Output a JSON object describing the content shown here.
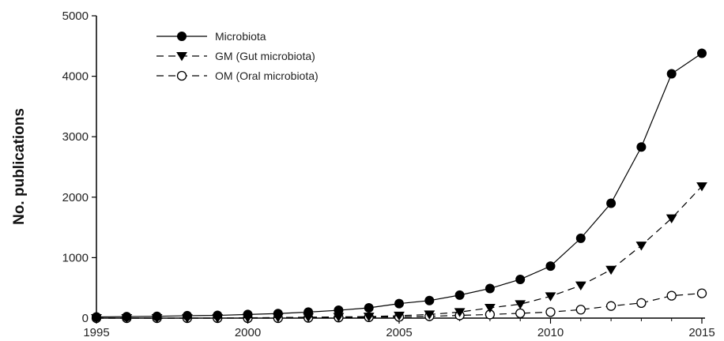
{
  "chart_data": {
    "type": "line",
    "title": "",
    "xlabel": "",
    "ylabel": "No. publications",
    "xlim": [
      1995,
      2015
    ],
    "ylim": [
      0,
      5000
    ],
    "xticks": [
      "1995",
      "2000",
      "2005",
      "2010",
      "2015"
    ],
    "yticks": [
      "0",
      "1000",
      "2000",
      "3000",
      "4000",
      "5000"
    ],
    "grid": false,
    "legend_position": "top-left",
    "x": [
      1995,
      1996,
      1997,
      1998,
      1999,
      2000,
      2001,
      2002,
      2003,
      2004,
      2005,
      2006,
      2007,
      2008,
      2009,
      2010,
      2011,
      2012,
      2013,
      2014,
      2015
    ],
    "series": [
      {
        "name": "Microbiota",
        "marker": "filled-circle",
        "line": "solid",
        "color": "#000000",
        "values": [
          20,
          25,
          30,
          40,
          45,
          60,
          75,
          100,
          130,
          170,
          240,
          290,
          380,
          490,
          640,
          860,
          1320,
          1900,
          2830,
          4040,
          4380
        ]
      },
      {
        "name": "GM (Gut microbiota)",
        "marker": "filled-triangle-down",
        "line": "dashed",
        "color": "#000000",
        "values": [
          0,
          0,
          0,
          0,
          0,
          5,
          10,
          15,
          20,
          25,
          40,
          60,
          100,
          170,
          230,
          360,
          540,
          800,
          1200,
          1650,
          2180
        ]
      },
      {
        "name": "OM (Oral microbiota)",
        "marker": "open-circle",
        "line": "dashed",
        "color": "#000000",
        "values": [
          0,
          0,
          0,
          0,
          0,
          0,
          0,
          5,
          10,
          15,
          20,
          30,
          45,
          60,
          80,
          100,
          140,
          200,
          250,
          370,
          410
        ]
      }
    ]
  }
}
